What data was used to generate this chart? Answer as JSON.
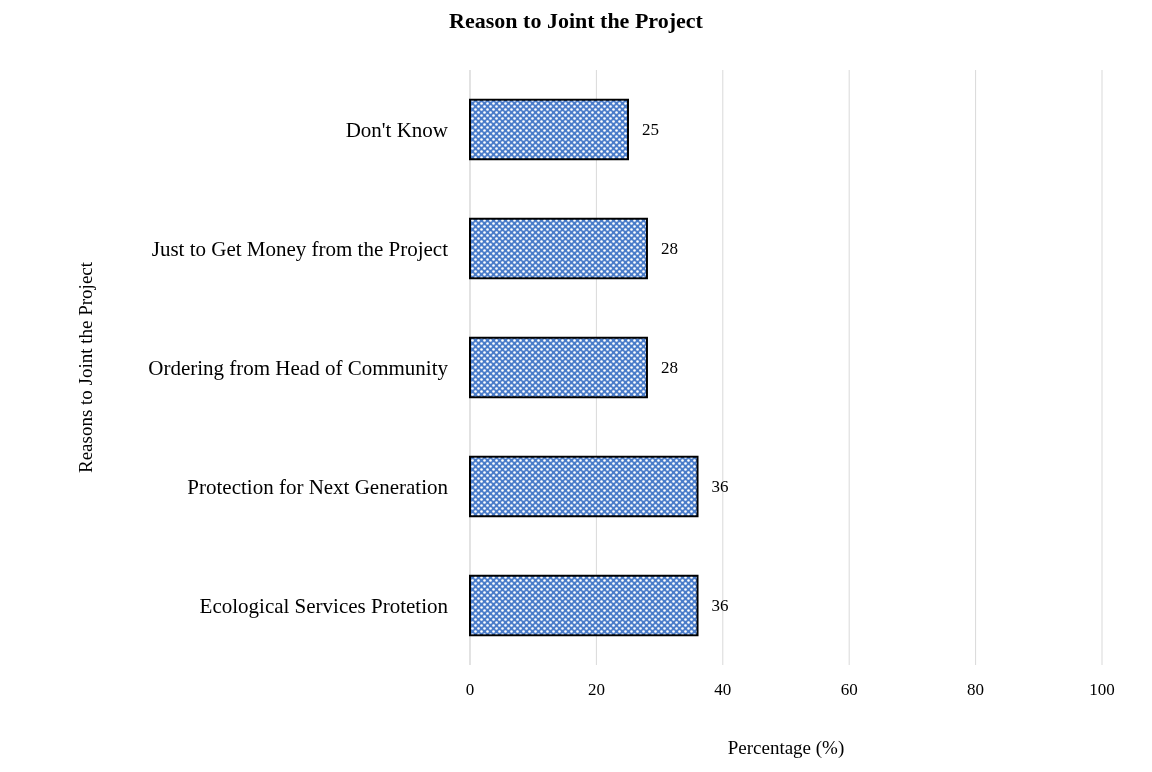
{
  "chart_data": {
    "type": "bar",
    "orientation": "horizontal",
    "title": "Reason to Joint the Project",
    "xlabel": "Percentage (%)",
    "ylabel": "Reasons to Joint the Project",
    "categories": [
      "Don't Know",
      "Just to Get Money from the Project",
      "Ordering from Head of Community",
      "Protection for Next Generation",
      "Ecological Services Protetion"
    ],
    "values": [
      25,
      28,
      28,
      36,
      36
    ],
    "color": "#4a7cc9",
    "xlim": [
      0,
      100
    ],
    "xticks": [
      0,
      20,
      40,
      60,
      80,
      100
    ],
    "grid": "x",
    "data_labels": true
  }
}
